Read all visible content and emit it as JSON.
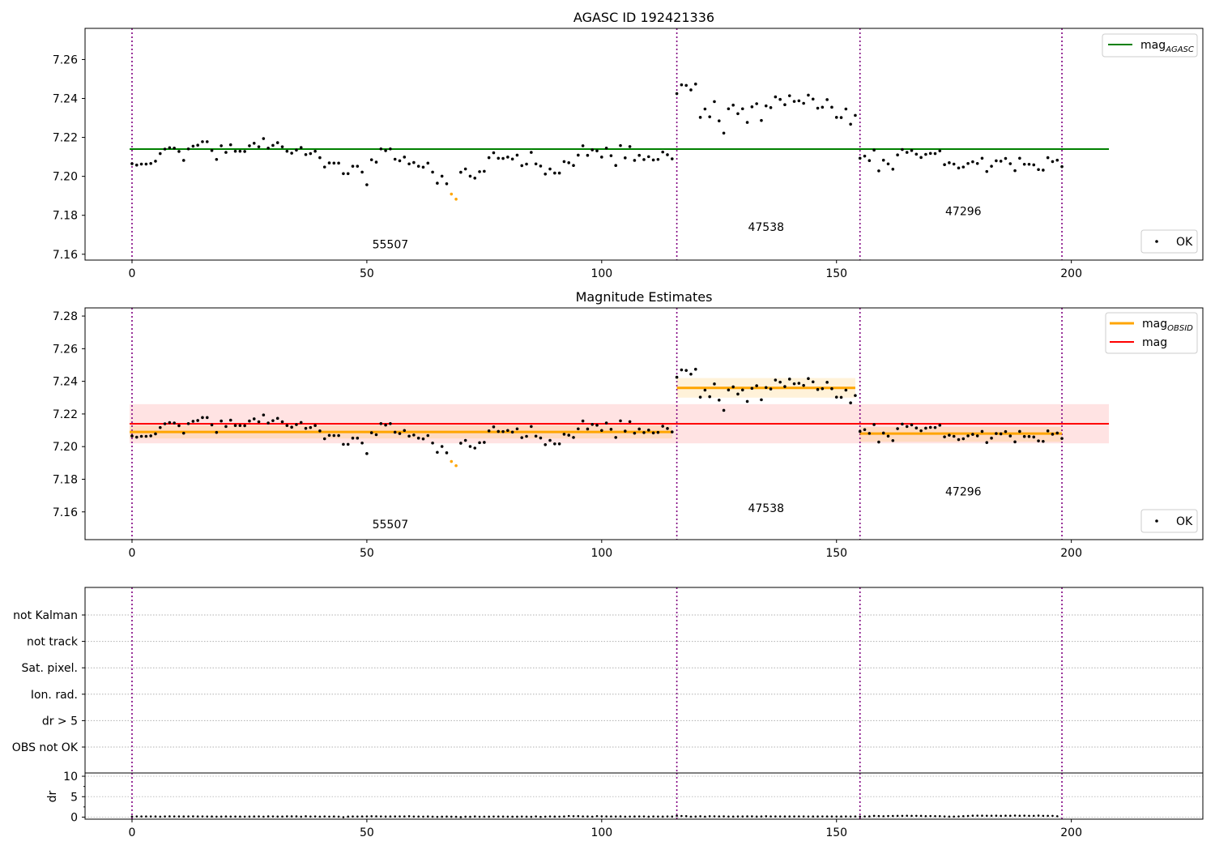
{
  "chart_data": [
    {
      "type": "scatter",
      "title": "AGASC ID 192421336",
      "xlim": [
        -10,
        228
      ],
      "ylim": [
        7.157,
        7.276
      ],
      "xticks": [
        0,
        50,
        100,
        150,
        200
      ],
      "yticks": [
        7.16,
        7.18,
        7.2,
        7.22,
        7.24,
        7.26
      ],
      "obsid_boundaries": [
        0,
        116,
        155,
        198
      ],
      "obsid_labels": [
        {
          "text": "55507",
          "x": 55,
          "y": 7.163
        },
        {
          "text": "47538",
          "x": 135,
          "y": 7.172
        },
        {
          "text": "47296",
          "x": 177,
          "y": 7.18
        }
      ],
      "hlines": [
        {
          "name": "mag_AGASC",
          "y": 7.214,
          "xmin": -0.5,
          "xmax": 208,
          "color": "#008000"
        }
      ],
      "legend": [
        {
          "label": "mag",
          "sub": "AGASC",
          "kind": "line",
          "color": "#008000",
          "loc": "upper right"
        },
        {
          "label": "OK",
          "kind": "marker",
          "color": "#000000",
          "loc": "lower right"
        }
      ],
      "grid": false
    },
    {
      "type": "scatter",
      "title": "Magnitude Estimates",
      "xlim": [
        -10,
        228
      ],
      "ylim": [
        7.143,
        7.285
      ],
      "xticks": [
        0,
        50,
        100,
        150,
        200
      ],
      "yticks": [
        7.16,
        7.18,
        7.2,
        7.22,
        7.24,
        7.26,
        7.28
      ],
      "obsid_boundaries": [
        0,
        116,
        155,
        198
      ],
      "obsid_labels": [
        {
          "text": "55507",
          "x": 55,
          "y": 7.15
        },
        {
          "text": "47538",
          "x": 135,
          "y": 7.16
        },
        {
          "text": "47296",
          "x": 177,
          "y": 7.17
        }
      ],
      "bands": [
        {
          "x0": -0.5,
          "x1": 208,
          "y0": 7.202,
          "y1": 7.226,
          "color": "#ff0000",
          "opacity": 0.11
        },
        {
          "x0": -0.5,
          "x1": 115,
          "y0": 7.205,
          "y1": 7.213,
          "color": "#ffa500",
          "opacity": 0.15
        },
        {
          "x0": 116,
          "x1": 154,
          "y0": 7.23,
          "y1": 7.242,
          "color": "#ffa500",
          "opacity": 0.15
        },
        {
          "x0": 155,
          "x1": 198,
          "y0": 7.203,
          "y1": 7.212,
          "color": "#ffa500",
          "opacity": 0.15
        }
      ],
      "hlines": [
        {
          "name": "mag_OBSID 55507",
          "y": 7.209,
          "xmin": -0.5,
          "xmax": 115,
          "color": "#ffa500"
        },
        {
          "name": "mag_OBSID 47538",
          "y": 7.236,
          "xmin": 116,
          "xmax": 154,
          "color": "#ffa500"
        },
        {
          "name": "mag_OBSID 47296",
          "y": 7.208,
          "xmin": 155,
          "xmax": 198,
          "color": "#ffa500"
        },
        {
          "name": "mag",
          "y": 7.214,
          "xmin": -0.5,
          "xmax": 208,
          "color": "#ff0000"
        }
      ],
      "legend": [
        {
          "label": "mag",
          "sub": "OBSID",
          "kind": "line",
          "color": "#ffa500",
          "loc": "upper right"
        },
        {
          "label": "mag",
          "sub": "",
          "kind": "line",
          "color": "#ff0000",
          "loc": "upper right"
        },
        {
          "label": "OK",
          "kind": "marker",
          "color": "#000000",
          "loc": "lower right"
        }
      ],
      "grid": false
    },
    {
      "type": "flags",
      "xlim": [
        -10,
        228
      ],
      "categories": [
        "not Kalman",
        "not track",
        "Sat. pixel.",
        "Ion. rad.",
        "dr > 5",
        "OBS not OK"
      ],
      "obsid_boundaries": [
        0,
        116,
        155,
        198
      ],
      "flagged_points": []
    },
    {
      "type": "scatter",
      "ylabel": "dr",
      "xlim": [
        -10,
        228
      ],
      "ylim": [
        -0.5,
        10.8
      ],
      "xticks": [
        0,
        50,
        100,
        150,
        200
      ],
      "yticks": [
        0,
        5,
        10
      ],
      "obsid_boundaries": [
        0,
        116,
        155,
        198
      ],
      "dr_values": [
        0.14,
        0.17,
        0.16,
        0.16,
        0.15,
        0.15,
        0.11,
        0.15,
        0.18,
        0.17,
        0.15,
        0.15,
        0.16,
        0.18,
        0.16,
        0.16,
        0.14,
        0.15,
        0.12,
        0.13,
        0.16,
        0.13,
        0.14,
        0.13,
        0.12,
        0.13,
        0.15,
        0.15,
        0.12,
        0.18,
        0.16,
        0.14,
        0.14,
        0.18,
        0.18,
        0.18,
        0.1,
        0.2,
        0.14,
        0.16,
        0.12,
        0.16,
        0.12,
        0.15,
        0.12,
        -0.01,
        0.13,
        0.15,
        0.14,
        0.16,
        0.17,
        0.2,
        0.19,
        0.17,
        0.13,
        0.15,
        0.15,
        0.16,
        0.16,
        0.2,
        0.14,
        0.14,
        0.11,
        0.15,
        0.11,
        0.07,
        0.1,
        0.13,
        0.1,
        0.09,
        0.0,
        0.1,
        0.08,
        0.15,
        0.09,
        0.12,
        0.1,
        0.14,
        0.14,
        0.13,
        0.11,
        0.11,
        0.1,
        0.14,
        0.12,
        0.08,
        0.17,
        0.06,
        0.12,
        0.16,
        0.13,
        0.12,
        0.15,
        0.27,
        0.22,
        0.23,
        0.17,
        0.15,
        0.12,
        0.24,
        0.18,
        0.16,
        0.16,
        0.14,
        0.18,
        0.12,
        0.14,
        0.15,
        0.16,
        0.17,
        0.11,
        0.16,
        0.14,
        0.13,
        0.16,
        0.13,
        0.33,
        0.27,
        0.23,
        0.11,
        0.13,
        0.2,
        0.12,
        0.2,
        0.19,
        0.16,
        0.18,
        0.14,
        0.14,
        0.15,
        0.15,
        0.18,
        0.18,
        0.13,
        0.16,
        0.2,
        0.16,
        0.16,
        0.15,
        0.15,
        0.15,
        0.15,
        0.17,
        0.16,
        0.14,
        0.15,
        0.15,
        0.17,
        0.16,
        0.15,
        0.14,
        0.15,
        0.16,
        0.14,
        0.17,
        0.13,
        0.17,
        0.18,
        0.3,
        0.25,
        0.22,
        0.26,
        0.28,
        0.3,
        0.3,
        0.34,
        0.3,
        0.32,
        0.3,
        0.24,
        0.27,
        0.24,
        0.23,
        0.15,
        0.13,
        0.14,
        0.16,
        0.23,
        0.29,
        0.35,
        0.36,
        0.35,
        0.34,
        0.34,
        0.35,
        0.3,
        0.35,
        0.33,
        0.38,
        0.33,
        0.36,
        0.32,
        0.32,
        0.37,
        0.32,
        0.31,
        0.32,
        0.22
      ]
    }
  ],
  "magnitudes": [
    7.2065,
    7.2058,
    7.2063,
    7.2063,
    7.2066,
    7.2078,
    7.2117,
    7.214,
    7.2147,
    7.2145,
    7.2128,
    7.2082,
    7.2141,
    7.2155,
    7.216,
    7.2178,
    7.2178,
    7.2133,
    7.2087,
    7.2157,
    7.2123,
    7.2162,
    7.2129,
    7.2129,
    7.2128,
    7.2157,
    7.217,
    7.2152,
    7.2194,
    7.2145,
    7.2159,
    7.2173,
    7.2152,
    7.2129,
    7.2119,
    7.2135,
    7.2148,
    7.2112,
    7.2117,
    7.2129,
    7.2096,
    7.2048,
    7.2069,
    7.2068,
    7.2068,
    7.2014,
    7.2014,
    7.2052,
    7.2052,
    7.2022,
    7.1957,
    7.2085,
    7.2073,
    7.2141,
    7.2132,
    7.2141,
    7.2088,
    7.208,
    7.2099,
    7.2064,
    7.2071,
    7.2052,
    7.2047,
    7.2068,
    7.2022,
    7.1965,
    7.2001,
    7.1962,
    7.1909,
    7.1883,
    7.2021,
    7.2038,
    7.2001,
    7.1991,
    7.2024,
    7.2026,
    7.2096,
    7.2121,
    7.2093,
    7.2092,
    7.2099,
    7.2089,
    7.2109,
    7.2055,
    7.2063,
    7.2123,
    7.2064,
    7.2053,
    7.2012,
    7.2038,
    7.2017,
    7.2017,
    7.2076,
    7.207,
    7.2056,
    7.2109,
    7.2157,
    7.2108,
    7.2136,
    7.2131,
    7.2099,
    7.2145,
    7.2106,
    7.2056,
    7.2158,
    7.2095,
    7.2153,
    7.2082,
    7.2108,
    7.2086,
    7.2101,
    7.2084,
    7.2087,
    7.2125,
    7.2111,
    7.209,
    7.2425,
    7.247,
    7.2467,
    7.2444,
    7.2474,
    7.2303,
    7.2346,
    7.2306,
    7.2384,
    7.2285,
    7.2222,
    7.2347,
    7.2366,
    7.2322,
    7.2347,
    7.2277,
    7.2357,
    7.2373,
    7.2287,
    7.2362,
    7.2353,
    7.2408,
    7.2395,
    7.2368,
    7.2414,
    7.2385,
    7.2388,
    7.2375,
    7.2417,
    7.2397,
    7.235,
    7.2355,
    7.2394,
    7.2355,
    7.2303,
    7.2302,
    7.2346,
    7.2268,
    7.2313,
    7.2093,
    7.2104,
    7.2081,
    7.2135,
    7.2028,
    7.2083,
    7.2064,
    7.2037,
    7.211,
    7.2138,
    7.2123,
    7.2133,
    7.2114,
    7.2097,
    7.2113,
    7.2118,
    7.2117,
    7.2131,
    7.206,
    7.207,
    7.2063,
    7.2043,
    7.2048,
    7.2066,
    7.2075,
    7.2066,
    7.2093,
    7.2025,
    7.2052,
    7.208,
    7.2078,
    7.2092,
    7.2065,
    7.2029,
    7.2093,
    7.2062,
    7.2062,
    7.2059,
    7.2035,
    7.2032,
    7.2096,
    7.2076,
    7.2083,
    7.205
  ],
  "flagged_orange_indices": [
    68,
    69
  ],
  "obsid_boundary_color": "#800080",
  "ok_marker_color": "#000000",
  "flagged_marker_color": "#ffa500"
}
